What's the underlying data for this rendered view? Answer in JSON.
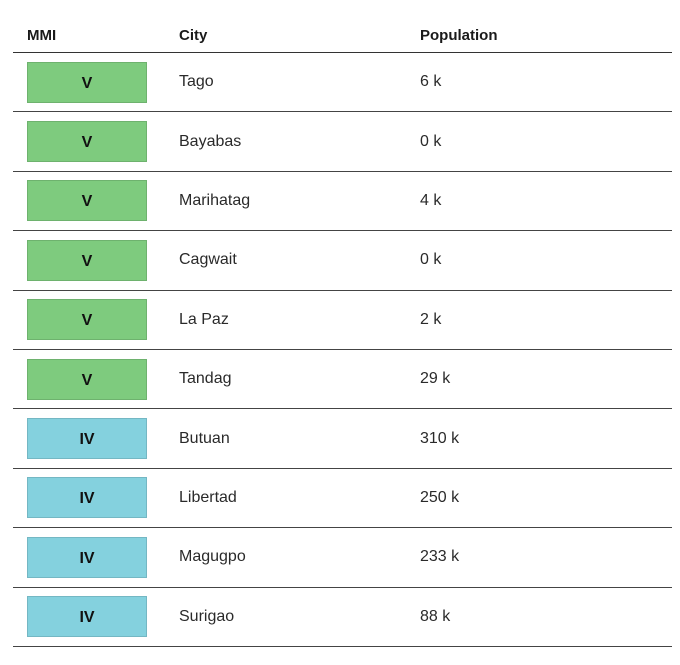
{
  "table": {
    "headers": {
      "mmi": "MMI",
      "city": "City",
      "population": "Population"
    },
    "colors": {
      "V": "#7ECB7E",
      "IV": "#84D1DE"
    },
    "rows": [
      {
        "mmi": "V",
        "city": "Tago",
        "population": "6 k"
      },
      {
        "mmi": "V",
        "city": "Bayabas",
        "population": "0 k"
      },
      {
        "mmi": "V",
        "city": "Marihatag",
        "population": "4 k"
      },
      {
        "mmi": "V",
        "city": "Cagwait",
        "population": "0 k"
      },
      {
        "mmi": "V",
        "city": "La Paz",
        "population": "2 k"
      },
      {
        "mmi": "V",
        "city": "Tandag",
        "population": "29 k"
      },
      {
        "mmi": "IV",
        "city": "Butuan",
        "population": "310 k"
      },
      {
        "mmi": "IV",
        "city": "Libertad",
        "population": "250 k"
      },
      {
        "mmi": "IV",
        "city": "Magugpo",
        "population": "233 k"
      },
      {
        "mmi": "IV",
        "city": "Surigao",
        "population": "88 k"
      }
    ]
  }
}
